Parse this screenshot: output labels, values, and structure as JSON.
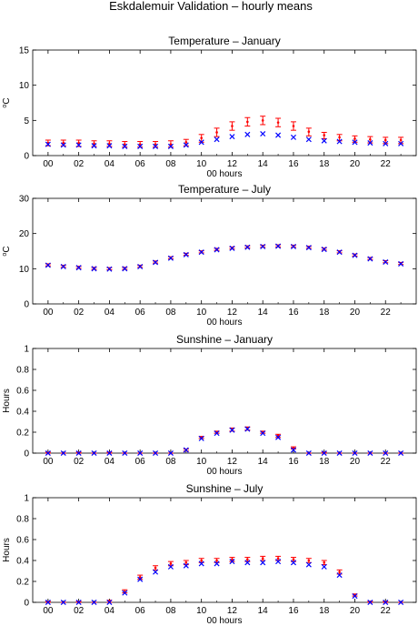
{
  "suptitle": "Eskdalemuir Validation – hourly means",
  "colors": {
    "model": "#ff0000",
    "obs": "#0000ff",
    "axes": "#000000"
  },
  "chart_data": [
    {
      "type": "scatter",
      "title": "Temperature – January",
      "xlabel": "00 hours",
      "ylabel": "°C",
      "ylabel_base": "C",
      "ylabel_sup": "o",
      "xlim": [
        -1,
        24
      ],
      "ylim": [
        0,
        15
      ],
      "xticks": [
        "00",
        "02",
        "04",
        "06",
        "08",
        "10",
        "12",
        "14",
        "16",
        "18",
        "20",
        "22"
      ],
      "yticks": [
        "0",
        "5",
        "10",
        "15"
      ],
      "x": [
        0,
        1,
        2,
        3,
        4,
        5,
        6,
        7,
        8,
        9,
        10,
        11,
        12,
        13,
        14,
        15,
        16,
        17,
        18,
        19,
        20,
        21,
        22,
        23
      ],
      "series": [
        {
          "role": "model",
          "values": [
            1.8,
            1.8,
            1.8,
            1.7,
            1.7,
            1.6,
            1.6,
            1.6,
            1.6,
            1.9,
            2.5,
            3.3,
            4.2,
            4.8,
            5.0,
            4.7,
            4.2,
            3.4,
            2.9,
            2.6,
            2.4,
            2.3,
            2.2,
            2.2
          ],
          "err_low": [
            1.4,
            1.4,
            1.3,
            1.3,
            1.3,
            1.2,
            1.2,
            1.2,
            1.2,
            1.4,
            1.9,
            2.7,
            3.6,
            4.2,
            4.4,
            4.1,
            3.6,
            2.8,
            2.4,
            2.1,
            1.9,
            1.8,
            1.7,
            1.7
          ],
          "err_high": [
            2.2,
            2.2,
            2.2,
            2.1,
            2.1,
            2.0,
            2.0,
            2.0,
            2.1,
            2.3,
            3.0,
            3.9,
            4.8,
            5.4,
            5.6,
            5.3,
            4.8,
            3.9,
            3.3,
            3.0,
            2.8,
            2.7,
            2.6,
            2.6
          ]
        },
        {
          "role": "obs",
          "values": [
            1.6,
            1.5,
            1.5,
            1.4,
            1.4,
            1.3,
            1.3,
            1.3,
            1.3,
            1.5,
            1.9,
            2.3,
            2.7,
            3.0,
            3.1,
            2.9,
            2.6,
            2.3,
            2.1,
            2.0,
            1.9,
            1.8,
            1.7,
            1.7
          ]
        }
      ]
    },
    {
      "type": "scatter",
      "title": "Temperature – July",
      "xlabel": "00 hours",
      "ylabel": "°C",
      "ylabel_base": "C",
      "ylabel_sup": "o",
      "xlim": [
        -1,
        24
      ],
      "ylim": [
        0,
        30
      ],
      "xticks": [
        "00",
        "02",
        "04",
        "06",
        "08",
        "10",
        "12",
        "14",
        "16",
        "18",
        "20",
        "22"
      ],
      "yticks": [
        "0",
        "10",
        "20",
        "30"
      ],
      "x": [
        0,
        1,
        2,
        3,
        4,
        5,
        6,
        7,
        8,
        9,
        10,
        11,
        12,
        13,
        14,
        15,
        16,
        17,
        18,
        19,
        20,
        21,
        22,
        23
      ],
      "series": [
        {
          "role": "model",
          "values": [
            11.1,
            10.7,
            10.4,
            10.1,
            10.0,
            10.1,
            10.7,
            11.9,
            13.1,
            14.1,
            14.8,
            15.5,
            15.9,
            16.2,
            16.4,
            16.5,
            16.4,
            16.1,
            15.6,
            14.8,
            13.9,
            12.9,
            12.0,
            11.5
          ],
          "err_low": [
            10.8,
            10.4,
            10.1,
            9.8,
            9.7,
            9.8,
            10.4,
            11.6,
            12.8,
            13.8,
            14.5,
            15.2,
            15.6,
            15.9,
            16.1,
            16.2,
            16.1,
            15.8,
            15.3,
            14.5,
            13.6,
            12.6,
            11.7,
            11.2
          ],
          "err_high": [
            11.4,
            11.0,
            10.7,
            10.4,
            10.3,
            10.4,
            11.0,
            12.2,
            13.4,
            14.4,
            15.1,
            15.8,
            16.2,
            16.5,
            16.7,
            16.8,
            16.7,
            16.4,
            15.9,
            15.1,
            14.2,
            13.2,
            12.3,
            11.8
          ]
        },
        {
          "role": "obs",
          "values": [
            11.0,
            10.6,
            10.3,
            10.0,
            9.9,
            10.0,
            10.6,
            11.8,
            13.0,
            14.0,
            14.7,
            15.4,
            15.8,
            16.1,
            16.3,
            16.4,
            16.3,
            16.0,
            15.5,
            14.7,
            13.8,
            12.8,
            11.9,
            11.4
          ]
        }
      ]
    },
    {
      "type": "scatter",
      "title": "Sunshine – January",
      "xlabel": "00 hours",
      "ylabel": "Hours",
      "xlim": [
        -1,
        24
      ],
      "ylim": [
        0,
        1
      ],
      "xticks": [
        "00",
        "02",
        "04",
        "06",
        "08",
        "10",
        "12",
        "14",
        "16",
        "18",
        "20",
        "22"
      ],
      "yticks": [
        "0",
        "0.2",
        "0.4",
        "0.6",
        "0.8",
        "1"
      ],
      "x": [
        0,
        1,
        2,
        3,
        4,
        5,
        6,
        7,
        8,
        9,
        10,
        11,
        12,
        13,
        14,
        15,
        16,
        17,
        18,
        19,
        20,
        21,
        22,
        23
      ],
      "series": [
        {
          "role": "model",
          "values": [
            0,
            0,
            0,
            0,
            0,
            0,
            0,
            0,
            0,
            0.03,
            0.15,
            0.2,
            0.23,
            0.24,
            0.2,
            0.17,
            0.05,
            0,
            0,
            0,
            0,
            0,
            0,
            0
          ],
          "err_low": [
            0,
            0,
            0,
            0,
            0,
            0,
            0,
            0,
            0,
            0.02,
            0.14,
            0.19,
            0.21,
            0.22,
            0.19,
            0.15,
            0.04,
            0,
            0,
            0,
            0,
            0,
            0,
            0
          ],
          "err_high": [
            0.01,
            0,
            0.01,
            0,
            0.01,
            0,
            0,
            0,
            0,
            0.04,
            0.16,
            0.21,
            0.24,
            0.25,
            0.21,
            0.18,
            0.06,
            0,
            0.01,
            0,
            0,
            0,
            0,
            0
          ]
        },
        {
          "role": "obs",
          "values": [
            0,
            0,
            0,
            0,
            0,
            0,
            0,
            0,
            0,
            0.03,
            0.14,
            0.19,
            0.22,
            0.23,
            0.19,
            0.15,
            0.03,
            0,
            0,
            0,
            0,
            0,
            0,
            0
          ]
        }
      ]
    },
    {
      "type": "scatter",
      "title": "Sunshine – July",
      "xlabel": "00 hours",
      "ylabel": "Hours",
      "xlim": [
        -1,
        24
      ],
      "ylim": [
        0,
        1
      ],
      "xticks": [
        "00",
        "02",
        "04",
        "06",
        "08",
        "10",
        "12",
        "14",
        "16",
        "18",
        "20",
        "22"
      ],
      "yticks": [
        "0",
        "0.2",
        "0.4",
        "0.6",
        "0.8",
        "1"
      ],
      "x": [
        0,
        1,
        2,
        3,
        4,
        5,
        6,
        7,
        8,
        9,
        10,
        11,
        12,
        13,
        14,
        15,
        16,
        17,
        18,
        19,
        20,
        21,
        22,
        23
      ],
      "series": [
        {
          "role": "model",
          "values": [
            0,
            0,
            0,
            0,
            0.01,
            0.1,
            0.24,
            0.33,
            0.37,
            0.38,
            0.4,
            0.4,
            0.41,
            0.41,
            0.42,
            0.42,
            0.41,
            0.4,
            0.38,
            0.29,
            0.07,
            0,
            0,
            0
          ],
          "err_low": [
            0,
            0,
            0,
            0,
            0,
            0.09,
            0.22,
            0.31,
            0.35,
            0.36,
            0.38,
            0.38,
            0.39,
            0.39,
            0.4,
            0.4,
            0.39,
            0.38,
            0.36,
            0.27,
            0.06,
            0,
            0,
            0
          ],
          "err_high": [
            0.01,
            0,
            0.01,
            0,
            0.02,
            0.12,
            0.26,
            0.35,
            0.39,
            0.4,
            0.42,
            0.42,
            0.43,
            0.43,
            0.44,
            0.44,
            0.43,
            0.42,
            0.4,
            0.31,
            0.08,
            0.01,
            0.01,
            0
          ]
        },
        {
          "role": "obs",
          "values": [
            0,
            0,
            0,
            0,
            0,
            0.09,
            0.22,
            0.29,
            0.34,
            0.35,
            0.37,
            0.37,
            0.39,
            0.38,
            0.38,
            0.39,
            0.38,
            0.36,
            0.34,
            0.26,
            0.06,
            0,
            0,
            0
          ]
        }
      ]
    }
  ]
}
